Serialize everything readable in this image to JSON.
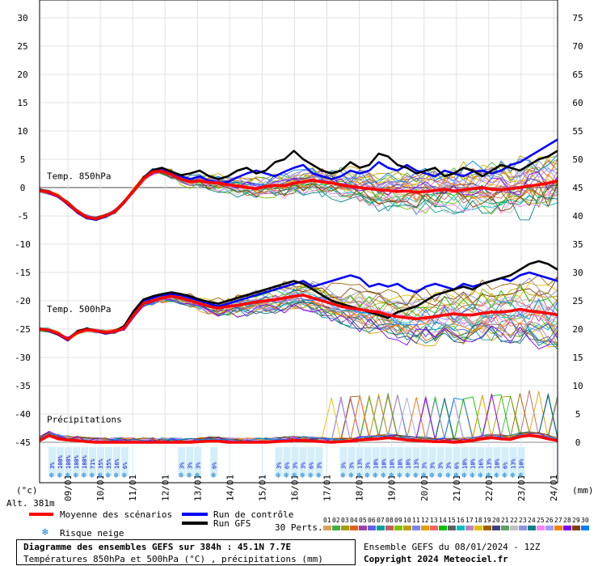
{
  "chart_data": {
    "type": "line",
    "title": "Diagramme des ensembles GEFS sur 384h : 45.1N 7.7E",
    "subtitle": "Températures 850hPa et 500hPa (°C) , précipitations (mm)",
    "run_info": "Ensemble GEFS du 08/01/2024 - 12Z",
    "copyright": "Copyright 2024 Meteociel.fr",
    "altitude": "Alt. 381m",
    "left_axis_unit": "(°c)",
    "right_axis_unit": "(mm)",
    "left_axis": {
      "min": -45,
      "max": 30,
      "ticks": [
        30,
        25,
        20,
        15,
        10,
        5,
        0,
        -5,
        -10,
        -15,
        -20,
        -25,
        -30,
        -35,
        -40,
        -45
      ]
    },
    "right_axis": {
      "ticks": [
        75,
        70,
        65,
        60,
        55,
        50,
        45,
        40,
        35,
        30,
        25,
        20,
        15,
        10,
        5,
        0
      ]
    },
    "x_ticks": [
      "09/01",
      "10/01",
      "11/01",
      "12/01",
      "13/01",
      "14/01",
      "15/01",
      "16/01",
      "17/01",
      "18/01",
      "19/01",
      "20/01",
      "21/01",
      "22/01",
      "23/01",
      "24/01"
    ],
    "section_labels": {
      "t850": "Temp. 850hPa",
      "t500": "Temp. 500hPa",
      "precip": "Précipitations"
    },
    "t850_mean": [
      -0.5,
      -0.8,
      -1.5,
      -2.8,
      -4.2,
      -5.2,
      -5.5,
      -5.0,
      -4.2,
      -2.5,
      -0.5,
      1.5,
      2.8,
      2.9,
      2.3,
      1.5,
      1.0,
      1.2,
      0.9,
      0.8,
      0.5,
      0.3,
      0.0,
      -0.2,
      0.2,
      0.4,
      0.3,
      0.8,
      1.0,
      1.3,
      1.0,
      0.8,
      0.5,
      0.2,
      0.0,
      -0.2,
      -0.4,
      -0.5,
      -0.7,
      -0.6,
      -0.8,
      -0.7,
      -0.5,
      -0.3,
      -0.6,
      -0.4,
      -0.2,
      0.0,
      -0.3,
      -0.4,
      -0.2,
      0.0,
      0.3,
      0.5,
      0.8,
      1.2
    ],
    "t850_control": [
      -0.5,
      -0.9,
      -1.6,
      -3.0,
      -4.4,
      -5.4,
      -5.7,
      -5.1,
      -4.3,
      -2.6,
      -0.6,
      1.6,
      3.0,
      3.4,
      2.6,
      2.0,
      1.5,
      2.0,
      1.2,
      0.8,
      1.0,
      1.8,
      2.5,
      3.0,
      2.5,
      2.0,
      2.8,
      3.5,
      4.0,
      2.5,
      2.0,
      1.5,
      2.0,
      3.0,
      2.5,
      3.0,
      4.5,
      3.5,
      3.0,
      4.0,
      3.0,
      2.5,
      2.0,
      3.0,
      2.5,
      2.0,
      2.8,
      3.0,
      2.5,
      3.0,
      4.0,
      4.5,
      5.5,
      6.5,
      7.5,
      8.5
    ],
    "t850_gfs": [
      -0.4,
      -0.8,
      -1.5,
      -2.9,
      -4.3,
      -5.3,
      -5.6,
      -5.0,
      -4.1,
      -2.4,
      -0.4,
      1.7,
      3.1,
      3.5,
      2.8,
      2.2,
      2.5,
      3.0,
      2.0,
      1.5,
      2.0,
      3.0,
      3.5,
      2.5,
      3.0,
      4.5,
      5.0,
      6.5,
      5.0,
      4.0,
      3.0,
      2.5,
      3.0,
      4.5,
      3.5,
      4.0,
      6.0,
      5.5,
      4.0,
      3.5,
      2.5,
      3.0,
      3.5,
      2.0,
      2.5,
      3.5,
      3.0,
      2.0,
      3.0,
      4.0,
      3.5,
      3.0,
      4.0,
      5.0,
      5.5,
      6.5
    ],
    "t500_mean": [
      -25.0,
      -25.2,
      -25.8,
      -26.8,
      -25.6,
      -25.1,
      -25.3,
      -25.6,
      -25.4,
      -24.8,
      -22.5,
      -20.5,
      -20.0,
      -19.5,
      -19.2,
      -19.5,
      -20.0,
      -20.5,
      -21.0,
      -21.3,
      -21.0,
      -20.8,
      -20.5,
      -20.2,
      -20.0,
      -19.8,
      -19.5,
      -19.2,
      -19.0,
      -19.5,
      -20.0,
      -20.5,
      -21.0,
      -21.3,
      -21.5,
      -21.8,
      -22.0,
      -22.5,
      -22.8,
      -23.0,
      -23.2,
      -23.0,
      -22.8,
      -22.5,
      -22.3,
      -22.5,
      -22.5,
      -22.2,
      -22.0,
      -22.0,
      -21.8,
      -21.5,
      -21.8,
      -22.0,
      -22.2,
      -22.5
    ],
    "t500_control": [
      -25.0,
      -25.3,
      -26.0,
      -27.0,
      -25.5,
      -25.0,
      -25.4,
      -25.8,
      -25.5,
      -24.5,
      -22.0,
      -20.0,
      -19.5,
      -19.0,
      -18.8,
      -19.0,
      -19.5,
      -20.0,
      -20.5,
      -21.0,
      -20.5,
      -20.0,
      -19.5,
      -19.0,
      -18.5,
      -18.0,
      -17.5,
      -17.0,
      -16.5,
      -17.5,
      -17.0,
      -16.5,
      -16.0,
      -15.5,
      -16.0,
      -17.5,
      -17.0,
      -17.5,
      -17.0,
      -18.0,
      -18.5,
      -17.5,
      -17.0,
      -17.5,
      -18.0,
      -17.0,
      -17.5,
      -17.0,
      -16.5,
      -16.0,
      -16.5,
      -15.5,
      -15.0,
      -15.5,
      -16.0,
      -16.5
    ],
    "t500_gfs": [
      -24.9,
      -25.2,
      -25.9,
      -26.9,
      -25.4,
      -24.9,
      -25.3,
      -25.7,
      -25.4,
      -24.4,
      -21.8,
      -19.8,
      -19.2,
      -18.8,
      -18.5,
      -18.8,
      -19.2,
      -19.8,
      -20.2,
      -20.5,
      -20.0,
      -19.5,
      -19.0,
      -18.5,
      -18.0,
      -17.5,
      -17.0,
      -16.5,
      -17.0,
      -18.0,
      -19.0,
      -20.0,
      -20.5,
      -21.0,
      -21.5,
      -22.0,
      -22.5,
      -23.0,
      -22.0,
      -21.5,
      -21.0,
      -20.0,
      -19.0,
      -18.5,
      -18.0,
      -17.5,
      -18.0,
      -17.0,
      -16.5,
      -16.0,
      -15.5,
      -14.5,
      -13.5,
      -13.0,
      -13.5,
      -14.5
    ],
    "precip_mean_mm": [
      0.3,
      1.2,
      0.6,
      0.4,
      0.3,
      0.1,
      0.0,
      0.0,
      0.0,
      0.0,
      0.0,
      0.0,
      0.0,
      0.0,
      0.0,
      0.0,
      0.0,
      0.1,
      0.2,
      0.2,
      0.0,
      0.0,
      0.0,
      0.0,
      0.0,
      0.1,
      0.2,
      0.3,
      0.3,
      0.2,
      0.1,
      0.0,
      0.1,
      0.2,
      0.4,
      0.5,
      0.6,
      0.8,
      0.6,
      0.4,
      0.3,
      0.2,
      0.1,
      0.1,
      0.0,
      0.1,
      0.3,
      0.6,
      0.8,
      0.6,
      0.5,
      1.0,
      1.2,
      1.0,
      0.6,
      0.3
    ],
    "snow_risk": {
      "09/01": [
        "3%",
        "100%",
        "100%",
        "100%",
        "100%",
        "71%",
        "35%",
        "35%",
        "16%",
        "6%"
      ],
      "13/01": [
        "3%",
        "3%",
        "3%"
      ],
      "14/01": [
        "6%"
      ],
      "16/01": [
        "3%",
        "6%",
        "3%",
        "3%",
        "6%",
        "3%"
      ],
      "18/01": [
        "3%",
        "3%",
        "13%",
        "3%",
        "10%",
        "10%",
        "10%",
        "10%",
        "10%",
        "13%",
        "3%",
        "3%",
        "3%",
        "3%",
        "6%",
        "10%",
        "10%",
        "16%",
        "13%",
        "10%",
        "6%",
        "13%",
        "10%"
      ]
    },
    "members": [
      "01",
      "02",
      "03",
      "04",
      "05",
      "06",
      "07",
      "08",
      "09",
      "10",
      "11",
      "12",
      "13",
      "14",
      "15",
      "16",
      "17",
      "18",
      "19",
      "20",
      "21",
      "22",
      "23",
      "24",
      "25",
      "26",
      "27",
      "28",
      "29",
      "30"
    ],
    "member_colors": [
      "#d8a060",
      "#40b040",
      "#a0a000",
      "#e06020",
      "#a040a0",
      "#6060e0",
      "#00a0a0",
      "#c06060",
      "#80c000",
      "#c0a000",
      "#8080ff",
      "#e0a000",
      "#ff6060",
      "#00c000",
      "#606060",
      "#00c0c0",
      "#c080c0",
      "#e0c000",
      "#a06000",
      "#404080",
      "#60a060",
      "#c0c0c0",
      "#9090e0",
      "#008080",
      "#ff80ff",
      "#a0a0ff",
      "#ff8000",
      "#8000ff",
      "#804000",
      "#0080ff"
    ]
  },
  "legend": {
    "mean_label": "Moyenne des scénarios",
    "control_label": "Run de contrôle",
    "gfs_label": "Run GFS",
    "snow_label": "Risque neige",
    "perts_label": "30 Perts.",
    "colors": {
      "mean": "#ff0000",
      "control": "#0000ff",
      "gfs": "#000000"
    }
  }
}
